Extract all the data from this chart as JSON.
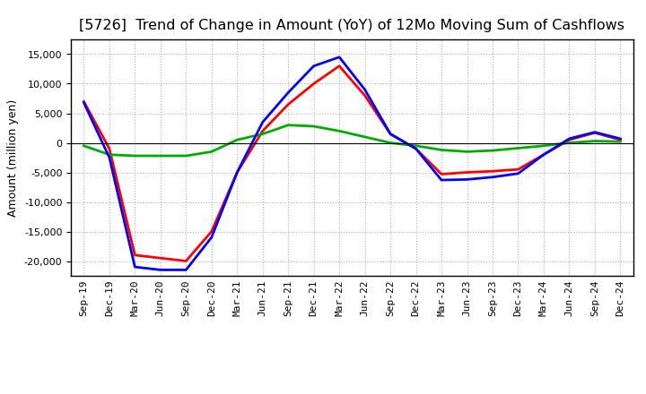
{
  "title": "[5726]  Trend of Change in Amount (YoY) of 12Mo Moving Sum of Cashflows",
  "ylabel": "Amount (million yen)",
  "x_labels": [
    "Sep-19",
    "Dec-19",
    "Mar-20",
    "Jun-20",
    "Sep-20",
    "Dec-20",
    "Mar-21",
    "Jun-21",
    "Sep-21",
    "Dec-21",
    "Mar-22",
    "Jun-22",
    "Sep-22",
    "Dec-22",
    "Mar-23",
    "Jun-23",
    "Sep-23",
    "Dec-23",
    "Mar-24",
    "Jun-24",
    "Sep-24",
    "Dec-24"
  ],
  "operating": [
    7000,
    -1000,
    -19000,
    -19500,
    -20000,
    -15000,
    -5000,
    2000,
    6500,
    10000,
    13000,
    8000,
    1500,
    -1000,
    -5300,
    -5000,
    -4800,
    -4500,
    -2000,
    500,
    1700,
    500
  ],
  "investing": [
    -500,
    -2000,
    -2200,
    -2200,
    -2200,
    -1500,
    500,
    1500,
    3000,
    2800,
    2000,
    1000,
    0,
    -500,
    -1200,
    -1500,
    -1300,
    -900,
    -500,
    0,
    300,
    200
  ],
  "free": [
    6800,
    -2500,
    -21000,
    -21500,
    -21500,
    -16000,
    -5000,
    3500,
    8500,
    13000,
    14500,
    9000,
    1500,
    -1000,
    -6300,
    -6200,
    -5800,
    -5200,
    -2000,
    700,
    1800,
    700
  ],
  "operating_color": "#ff0000",
  "investing_color": "#00aa00",
  "free_color": "#0000ff",
  "ylim": [
    -22500,
    17500
  ],
  "yticks": [
    -20000,
    -15000,
    -10000,
    -5000,
    0,
    5000,
    10000,
    15000
  ],
  "background_color": "#ffffff",
  "grid_color": "#b0b0b0",
  "title_fontsize": 11.5,
  "axis_fontsize": 9,
  "legend_fontsize": 9,
  "tick_fontsize": 8,
  "linewidth": 2.0
}
